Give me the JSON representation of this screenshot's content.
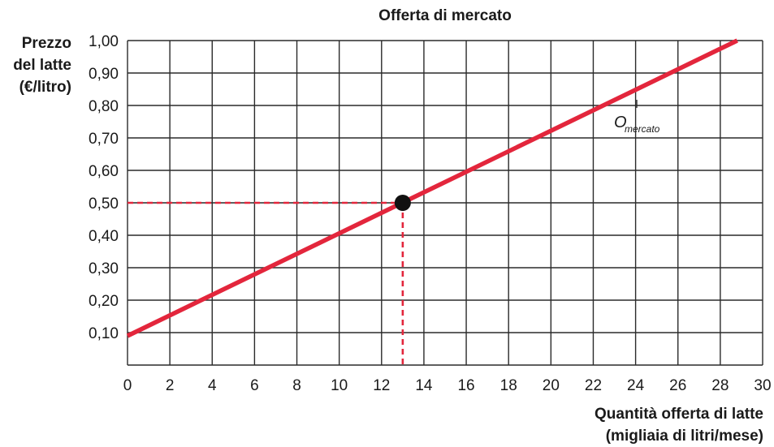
{
  "chart_data": {
    "type": "line",
    "title": "Offerta di mercato",
    "ylabel": [
      "Prezzo",
      "del latte",
      "(€/litro)"
    ],
    "xlabel": [
      "Quantità offerta di latte",
      "(migliaia di litri/mese)"
    ],
    "xlim": [
      0,
      30
    ],
    "ylim": [
      0,
      1.0
    ],
    "x_ticks": [
      "0",
      "2",
      "4",
      "6",
      "8",
      "10",
      "12",
      "14",
      "16",
      "18",
      "20",
      "22",
      "24",
      "26",
      "28",
      "30"
    ],
    "x_tick_values": [
      0,
      2,
      4,
      6,
      8,
      10,
      12,
      14,
      16,
      18,
      20,
      22,
      24,
      26,
      28,
      30
    ],
    "y_ticks": [
      "0,10",
      "0,20",
      "0,30",
      "0,40",
      "0,50",
      "0,60",
      "0,70",
      "0,80",
      "0,90",
      "1,00"
    ],
    "y_tick_values": [
      0.1,
      0.2,
      0.3,
      0.4,
      0.5,
      0.6,
      0.7,
      0.8,
      0.9,
      1.0
    ],
    "grid": true,
    "series": [
      {
        "name": "O",
        "name_sub": "mercato",
        "color": "#e3263c",
        "x": [
          0,
          28.8
        ],
        "y": [
          0.09,
          1.0
        ]
      }
    ],
    "highlight_point": {
      "x": 13,
      "y": 0.5,
      "color": "#111111"
    },
    "guide_color": "#e3263c"
  }
}
